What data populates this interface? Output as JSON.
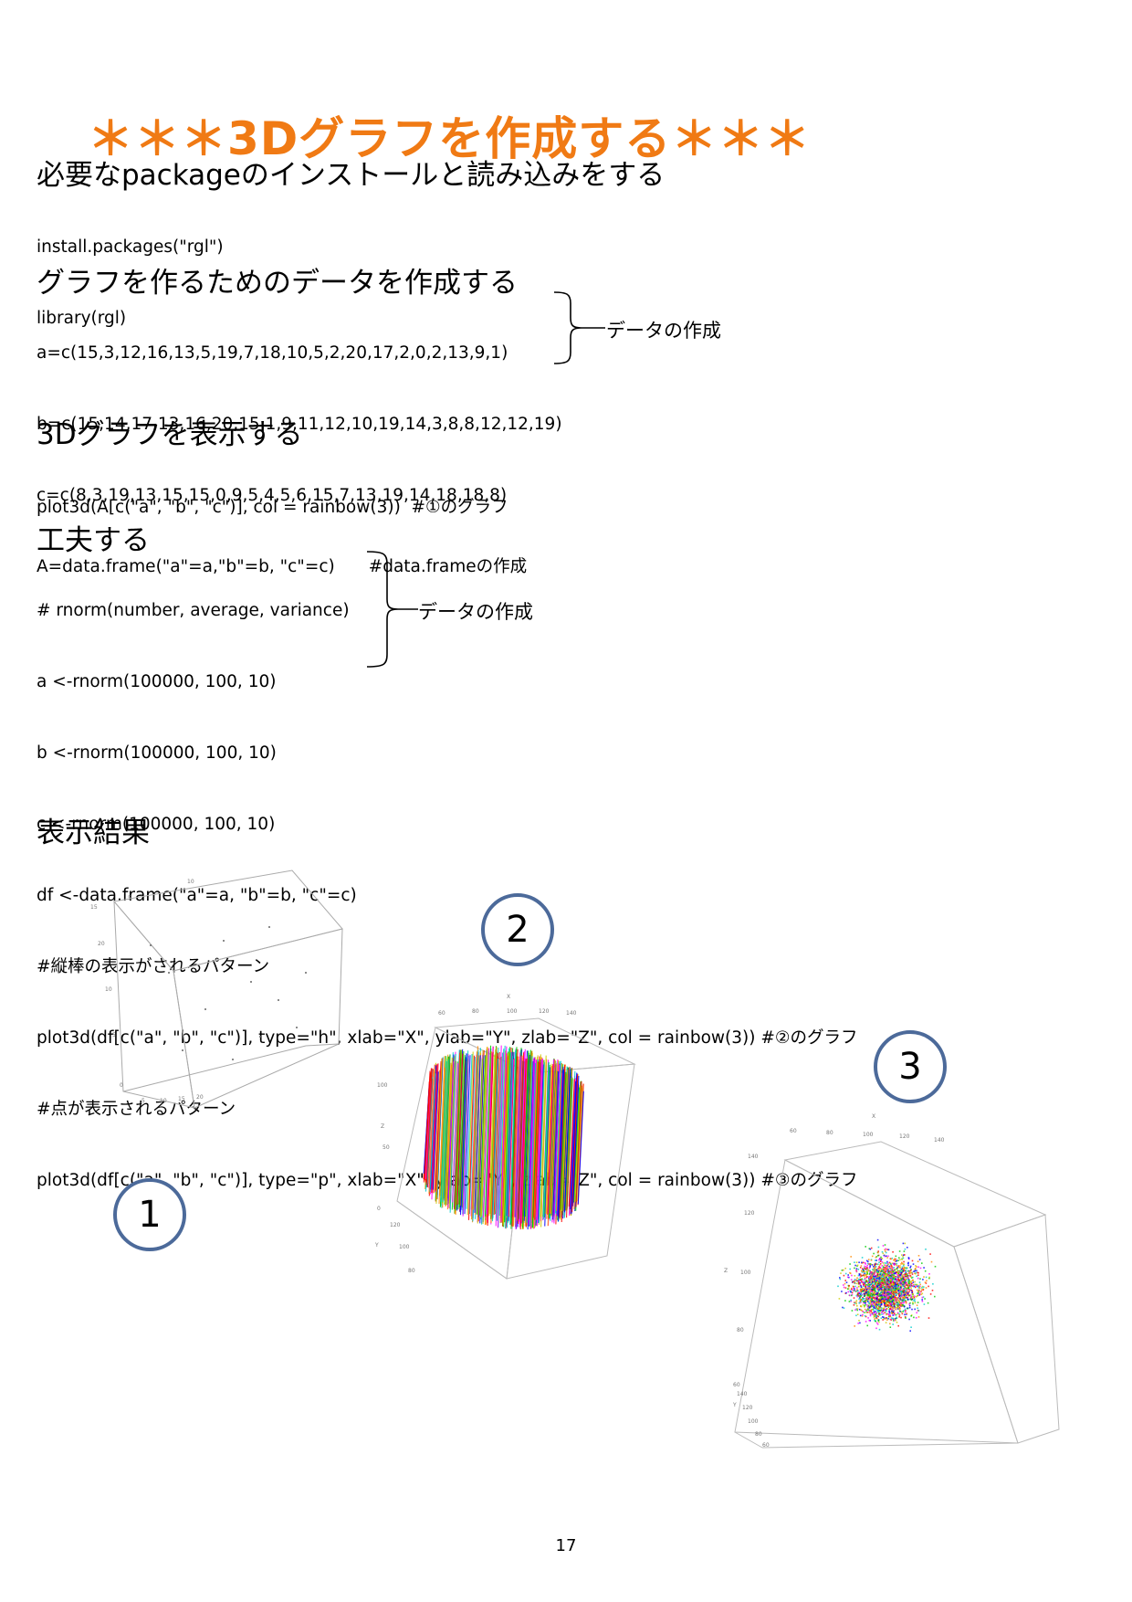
{
  "title": "＊＊＊3Dグラフを作成する＊＊＊",
  "sections": {
    "install": {
      "heading": "必要なpackageのインストールと読み込みをする",
      "lines": [
        "install.packages(\"rgl\")",
        "library(rgl)"
      ]
    },
    "data": {
      "heading": "グラフを作るためのデータを作成する",
      "lines": [
        "a=c(15,3,12,16,13,5,19,7,18,10,5,2,20,17,2,0,2,13,9,1)",
        "b=c(15,14,17,13,16,20,15,1,9,11,12,10,19,14,3,8,8,12,12,19)",
        "c=c(8,3,19,13,15,15,0,9,5,4,5,6,15,7,13,19,14,18,18,8)",
        "A=data.frame(\"a\"=a,\"b\"=b, \"c\"=c)　　#data.frameの作成"
      ],
      "brace_note": "データの作成"
    },
    "display": {
      "heading": "3Dグラフを表示する",
      "lines": [
        "plot3d(A[c(\"a\", \"b\", \"c\")], col = rainbow(3))  #①のグラフ"
      ]
    },
    "improve": {
      "heading": "工夫する",
      "lines": [
        "# rnorm(number, average, variance)",
        "a <-rnorm(100000, 100, 10)",
        "b <-rnorm(100000, 100, 10)",
        "c <-rnorm(100000, 100, 10)",
        "df <-data.frame(\"a\"=a, \"b\"=b, \"c\"=c)",
        "#縦棒の表示がされるパターン",
        "plot3d(df[c(\"a\", \"b\", \"c\")], type=\"h\", xlab=\"X\", ylab=\"Y\", zlab=\"Z\", col = rainbow(3)) #②のグラフ",
        "#点が表示されるパターン",
        "plot3d(df[c(\"a\", \"b\", \"c\")], type=\"p\", xlab=\"X\", ylab=\"Y\", zlab=\"Z\", col = rainbow(3)) #③のグラフ"
      ],
      "brace_note": "データの作成"
    },
    "result": {
      "heading": "表示結果"
    }
  },
  "figures": [
    {
      "badge": "1",
      "ticks": [
        "10",
        "5",
        "15",
        "20",
        "10",
        "5",
        "0",
        "5",
        "10",
        "15",
        "20"
      ]
    },
    {
      "badge": "2",
      "axis_labels": [
        "X",
        "Z",
        "Y"
      ],
      "x_ticks": [
        "60",
        "80",
        "100",
        "120",
        "140"
      ],
      "z_ticks": [
        "100",
        "50",
        "0"
      ],
      "y_ticks": [
        "120",
        "100",
        "80"
      ]
    },
    {
      "badge": "3",
      "axis_labels": [
        "X",
        "Z",
        "Y"
      ],
      "x_ticks": [
        "60",
        "80",
        "100",
        "120",
        "140"
      ],
      "z_ticks": [
        "140",
        "120",
        "100",
        "80",
        "60"
      ],
      "y_ticks": [
        "140",
        "120",
        "100",
        "80",
        "60"
      ]
    }
  ],
  "page_number": "17",
  "colors": {
    "title": "#F07A14",
    "badge_border": "#4C6A9A",
    "series": [
      "#FF0000",
      "#00CC00",
      "#0000FF"
    ]
  }
}
